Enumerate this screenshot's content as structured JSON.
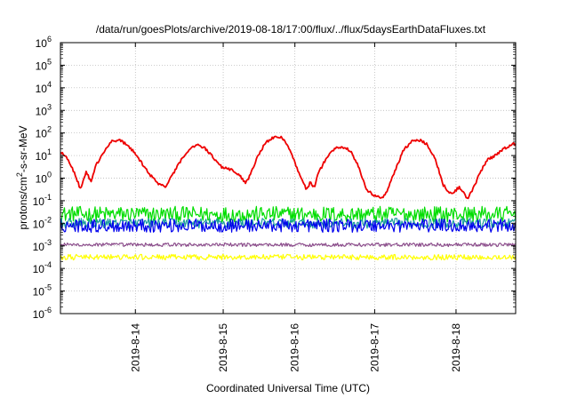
{
  "chart_data": {
    "type": "line",
    "title": "/data/run/goesPlots/archive/2019-08-18/17:00/flux/../flux/5daysEarthDataFluxes.txt",
    "xlabel": "Coordinated Universal Time (UTC)",
    "ylabel": {
      "prefix": "protons/cm",
      "sup": "2",
      "suffix": "-s-sr-MeV"
    },
    "yscale": "log",
    "ylim_exponents": [
      -6,
      6
    ],
    "ytick_base": "10",
    "yticks": [
      {
        "exp": -6,
        "label": "-6"
      },
      {
        "exp": -5,
        "label": "-5"
      },
      {
        "exp": -4,
        "label": "-4"
      },
      {
        "exp": -3,
        "label": "-3"
      },
      {
        "exp": -2,
        "label": "-2"
      },
      {
        "exp": -1,
        "label": "-1"
      },
      {
        "exp": 0,
        "label": "0"
      },
      {
        "exp": 1,
        "label": "1"
      },
      {
        "exp": 2,
        "label": "2"
      },
      {
        "exp": 3,
        "label": "3"
      },
      {
        "exp": 4,
        "label": "4"
      },
      {
        "exp": 5,
        "label": "5"
      },
      {
        "exp": 6,
        "label": "6"
      }
    ],
    "xlim_days": [
      0,
      5.65
    ],
    "xticks": [
      {
        "day": 0.93,
        "label": "2019-8-14"
      },
      {
        "day": 2.02,
        "label": "2019-8-15"
      },
      {
        "day": 2.91,
        "label": "2019-8-16"
      },
      {
        "day": 3.9,
        "label": "2019-8-17"
      },
      {
        "day": 4.91,
        "label": "2019-8-18"
      }
    ],
    "grid": true,
    "series": [
      {
        "color": "#00dd00",
        "noise": 0.35,
        "points": [
          [
            0,
            -1.6
          ],
          [
            5.65,
            -1.6
          ]
        ]
      },
      {
        "color": "#1b9e9e",
        "noise": 0.22,
        "points": [
          [
            0,
            -2.0
          ],
          [
            5.65,
            -2.0
          ]
        ]
      },
      {
        "color": "#0000ee",
        "noise": 0.3,
        "points": [
          [
            0,
            -2.1
          ],
          [
            5.65,
            -2.1
          ]
        ]
      },
      {
        "color": "#ffff00",
        "noise": 0.12,
        "points": [
          [
            0,
            -3.5
          ],
          [
            5.65,
            -3.5
          ]
        ]
      },
      {
        "color": "#8b4c8b",
        "noise": 0.08,
        "points": [
          [
            0,
            -2.95
          ],
          [
            5.65,
            -2.95
          ]
        ]
      },
      {
        "color": "#ee0000",
        "noise": 0.06,
        "points": [
          [
            0.0,
            1.2
          ],
          [
            0.1,
            0.8
          ],
          [
            0.2,
            0.0
          ],
          [
            0.25,
            -0.5
          ],
          [
            0.32,
            0.3
          ],
          [
            0.38,
            -0.2
          ],
          [
            0.43,
            0.5
          ],
          [
            0.55,
            1.2
          ],
          [
            0.62,
            1.6
          ],
          [
            0.72,
            1.7
          ],
          [
            0.82,
            1.5
          ],
          [
            0.9,
            1.2
          ],
          [
            1.0,
            0.7
          ],
          [
            1.1,
            0.2
          ],
          [
            1.2,
            -0.2
          ],
          [
            1.3,
            -0.4
          ],
          [
            1.4,
            0.2
          ],
          [
            1.5,
            0.8
          ],
          [
            1.6,
            1.3
          ],
          [
            1.7,
            1.5
          ],
          [
            1.8,
            1.3
          ],
          [
            1.9,
            0.9
          ],
          [
            2.0,
            0.5
          ],
          [
            2.1,
            0.4
          ],
          [
            2.2,
            0.2
          ],
          [
            2.3,
            -0.2
          ],
          [
            2.35,
            0.1
          ],
          [
            2.45,
            1.0
          ],
          [
            2.55,
            1.6
          ],
          [
            2.65,
            1.8
          ],
          [
            2.75,
            1.8
          ],
          [
            2.82,
            1.5
          ],
          [
            2.92,
            0.6
          ],
          [
            3.0,
            -0.1
          ],
          [
            3.05,
            -0.5
          ],
          [
            3.1,
            -0.2
          ],
          [
            3.15,
            -0.4
          ],
          [
            3.2,
            0.2
          ],
          [
            3.3,
            0.9
          ],
          [
            3.4,
            1.3
          ],
          [
            3.5,
            1.4
          ],
          [
            3.6,
            1.2
          ],
          [
            3.7,
            0.5
          ],
          [
            3.8,
            -0.5
          ],
          [
            3.9,
            -0.8
          ],
          [
            4.0,
            -0.85
          ],
          [
            4.05,
            -0.6
          ],
          [
            4.15,
            0.3
          ],
          [
            4.25,
            1.2
          ],
          [
            4.35,
            1.6
          ],
          [
            4.45,
            1.7
          ],
          [
            4.55,
            1.5
          ],
          [
            4.65,
            0.9
          ],
          [
            4.75,
            -0.3
          ],
          [
            4.85,
            -0.7
          ],
          [
            4.95,
            -0.4
          ],
          [
            5.05,
            -0.9
          ],
          [
            5.12,
            -0.5
          ],
          [
            5.2,
            0.2
          ],
          [
            5.3,
            0.8
          ],
          [
            5.4,
            1.0
          ],
          [
            5.5,
            1.3
          ],
          [
            5.6,
            1.5
          ],
          [
            5.65,
            1.5
          ]
        ]
      }
    ]
  }
}
